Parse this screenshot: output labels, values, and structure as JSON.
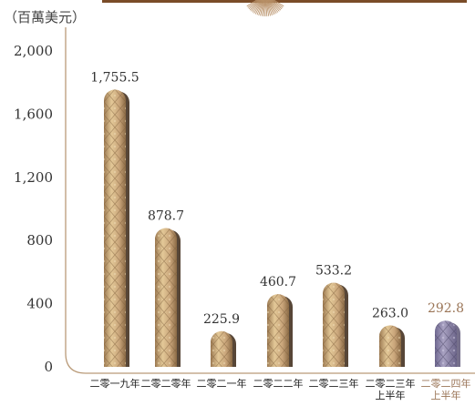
{
  "unit_label": "（百萬美元）",
  "chart_data": {
    "type": "bar",
    "categories": [
      [
        "二零一九年"
      ],
      [
        "二零二零年"
      ],
      [
        "二零二一年"
      ],
      [
        "二零二二年"
      ],
      [
        "二零二三年"
      ],
      [
        "二零二三年",
        "上半年"
      ],
      [
        "二零二四年",
        "上半年"
      ]
    ],
    "values": [
      1755.5,
      878.7,
      225.9,
      460.7,
      533.2,
      263.0,
      292.8
    ],
    "value_labels": [
      "1,755.5",
      "878.7",
      "225.9",
      "460.7",
      "533.2",
      "263.0",
      "292.8"
    ],
    "highlight_index": 6,
    "ylim": [
      0,
      2000
    ],
    "yticks": [
      0,
      400,
      800,
      1200,
      1600,
      2000
    ],
    "ytick_labels": [
      "0",
      "400",
      "800",
      "1,200",
      "1,600",
      "2,000"
    ],
    "colors": {
      "bar_gold": "#c9a57a",
      "bar_gold_dark": "#8a6a45",
      "bar_gold_light": "#ead3a8",
      "bar_highlight": "#8e87a8",
      "bar_highlight_dark": "#5d5677",
      "highlight_text": "#9b7658",
      "axis": "#b99a78",
      "top_band": "#7a4c28"
    }
  }
}
